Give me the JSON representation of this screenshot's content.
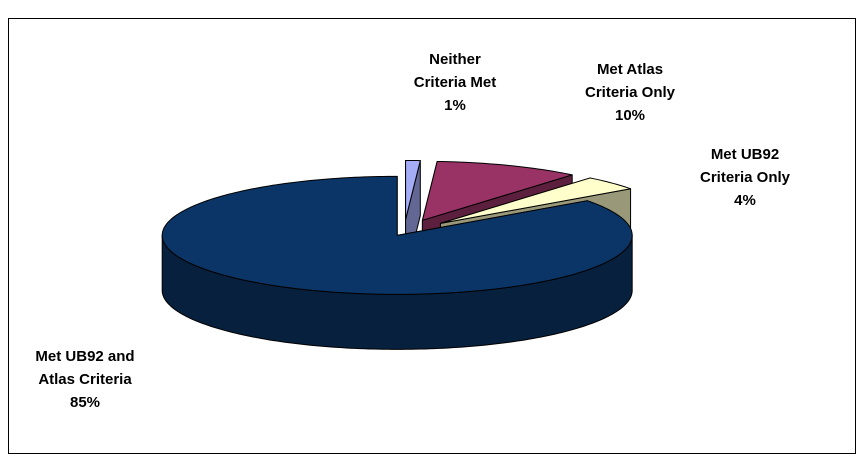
{
  "chart_data": {
    "type": "pie",
    "categories": [
      "Neither Criteria Met",
      "Met Atlas Criteria Only",
      "Met UB92 Criteria Only",
      "Met UB92 and Atlas Criteria"
    ],
    "values": [
      1,
      10,
      4,
      85
    ],
    "value_labels": [
      "1%",
      "10%",
      "4%",
      "85%"
    ],
    "colors": [
      "#a3acf5",
      "#993366",
      "#ffffcc",
      "#0b3566"
    ]
  }
}
